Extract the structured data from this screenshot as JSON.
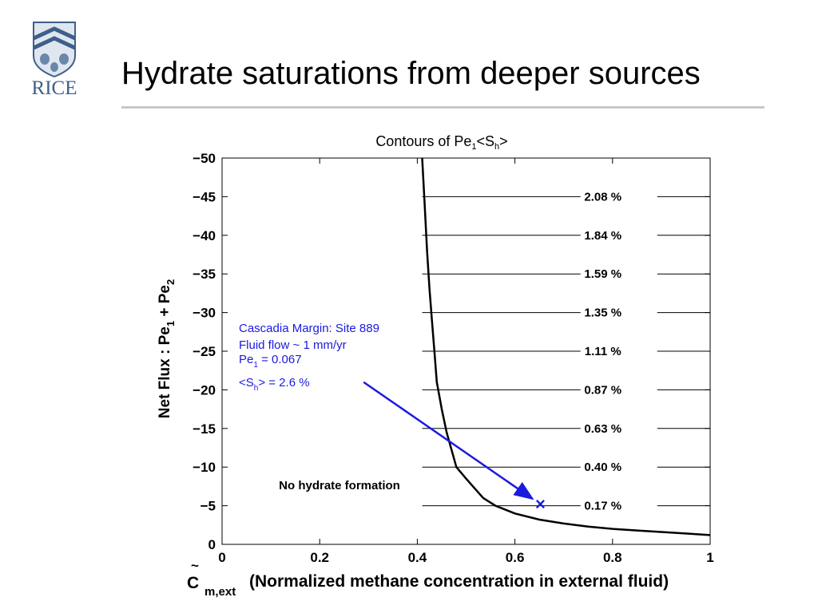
{
  "slide": {
    "title": "Hydrate saturations from deeper sources",
    "logo_text": "RICE"
  },
  "colors": {
    "logo": "#3f5f8a",
    "rule": "#c8c8c8",
    "annotation": "#1a1adf",
    "curve": "#000000"
  },
  "chart_data": {
    "type": "line",
    "title": "Contours of Pe",
    "title_sub1": "1",
    "title_mid": "<S",
    "title_sub2": "h",
    "title_end": ">",
    "xlabel_symbol": "C",
    "xlabel_tilde": "~",
    "xlabel_sub": "m,ext",
    "xlabel": "(Normalized methane concentration in external fluid)",
    "ylabel_parts": [
      "Net Flux : Pe",
      "1",
      " + Pe",
      "2"
    ],
    "xlim": [
      0,
      1
    ],
    "ylim": [
      0,
      -50
    ],
    "y_reversed": true,
    "xticks": [
      0,
      0.2,
      0.4,
      0.6,
      0.8,
      1
    ],
    "xtick_labels": [
      "0",
      "0.2",
      "0.4",
      "0.6",
      "0.8",
      "1"
    ],
    "yticks": [
      -50,
      -45,
      -40,
      -35,
      -30,
      -25,
      -20,
      -15,
      -10,
      -5,
      0
    ],
    "ytick_labels": [
      "−50",
      "−45",
      "−40",
      "−35",
      "−30",
      "−25",
      "−20",
      "−15",
      "−10",
      "−5",
      "0"
    ],
    "grid": false,
    "series": [
      {
        "name": "",
        "x": [
          0.41,
          0.415,
          0.42,
          0.425,
          0.43,
          0.435,
          0.44,
          0.45,
          0.46,
          0.48,
          0.5,
          0.535,
          0.56,
          0.6,
          0.65,
          0.7,
          0.75,
          0.8,
          0.85,
          0.9,
          0.95,
          1.0
        ],
        "y": [
          -50,
          -44,
          -38,
          -33,
          -29,
          -25,
          -21,
          -17.5,
          -14.5,
          -10,
          -8.5,
          -6,
          -5,
          -4,
          -3.2,
          -2.7,
          -2.3,
          -2.0,
          -1.8,
          -1.6,
          -1.4,
          -1.2
        ]
      }
    ],
    "contours": [
      {
        "y": -45,
        "label": "2.08 %"
      },
      {
        "y": -40,
        "label": "1.84 %"
      },
      {
        "y": -35,
        "label": "1.59 %"
      },
      {
        "y": -30,
        "label": "1.35 %"
      },
      {
        "y": -25,
        "label": "1.11 %"
      },
      {
        "y": -20,
        "label": "0.87 %"
      },
      {
        "y": -15,
        "label": "0.63 %"
      },
      {
        "y": -10,
        "label": "0.40 %"
      },
      {
        "y": -5,
        "label": "0.17 %"
      }
    ],
    "contour_line_xstart": 0.41,
    "contour_label_x": 0.813,
    "annotations": {
      "region_label": "No hydrate formation",
      "site_lines": [
        "Cascadia Margin: Site 889",
        "Fluid flow ~ 1 mm/yr"
      ],
      "pe_line": {
        "prefix": "Pe",
        "sub": "1",
        "rest": " = 0.067"
      },
      "sh_line": {
        "prefix": "<S",
        "sub": "h",
        "rest": "> = 2.6 %"
      },
      "marker": {
        "x": 0.652,
        "y": -5.2,
        "symbol": "×"
      },
      "arrow_from": {
        "x": 0.29,
        "y": -21
      }
    }
  }
}
